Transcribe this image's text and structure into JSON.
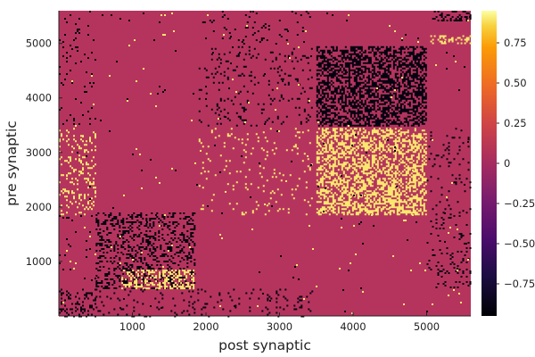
{
  "chart_data": {
    "type": "heatmap",
    "title": "",
    "xlabel": "post synaptic",
    "ylabel": "pre synaptic",
    "xlim": [
      0,
      5600
    ],
    "ylim": [
      0,
      5600
    ],
    "x_ticks": [
      1000,
      2000,
      3000,
      4000,
      5000
    ],
    "y_ticks": [
      1000,
      2000,
      3000,
      4000,
      5000
    ],
    "x_tick_labels": [
      "1000",
      "2000",
      "3000",
      "4000",
      "5000"
    ],
    "y_tick_labels": [
      "1000",
      "2000",
      "3000",
      "4000",
      "5000"
    ],
    "colorbar": {
      "colormap": "inferno",
      "range": [
        -0.95,
        0.95
      ],
      "ticks": [
        -0.75,
        -0.5,
        -0.25,
        0,
        0.25,
        0.5,
        0.75
      ],
      "tick_labels": [
        "−0.75",
        "−0.50",
        "−0.25",
        "0",
        "0.25",
        "0.50",
        "0.75"
      ]
    },
    "background_value": 0,
    "blocks": [
      {
        "x": [
          3500,
          5000
        ],
        "y": [
          3500,
          4950
        ],
        "value": -0.9,
        "density": 0.55
      },
      {
        "x": [
          3500,
          5000
        ],
        "y": [
          1850,
          3450
        ],
        "value": 0.9,
        "density": 0.5
      },
      {
        "x": [
          500,
          1850
        ],
        "y": [
          500,
          1900
        ],
        "value": -0.9,
        "density": 0.28
      },
      {
        "x": [
          850,
          1850
        ],
        "y": [
          500,
          850
        ],
        "value": 0.9,
        "density": 0.42
      },
      {
        "x": [
          1900,
          3450
        ],
        "y": [
          3500,
          4950
        ],
        "value": -0.9,
        "density": 0.08
      },
      {
        "x": [
          1900,
          3450
        ],
        "y": [
          1850,
          3450
        ],
        "value": 0.9,
        "density": 0.05
      },
      {
        "x": [
          0,
          500
        ],
        "y": [
          1850,
          3450
        ],
        "value": 0.9,
        "density": 0.15
      },
      {
        "x": [
          0,
          500
        ],
        "y": [
          0,
          500
        ],
        "value": -0.9,
        "density": 0.22
      },
      {
        "x": [
          500,
          3450
        ],
        "y": [
          0,
          500
        ],
        "value": -0.9,
        "density": 0.08
      },
      {
        "x": [
          0,
          500
        ],
        "y": [
          500,
          1850
        ],
        "value": -0.9,
        "density": 0.03
      },
      {
        "x": [
          0,
          500
        ],
        "y": [
          3500,
          5600
        ],
        "value": -0.9,
        "density": 0.05
      },
      {
        "x": [
          1900,
          3450
        ],
        "y": [
          5000,
          5600
        ],
        "value": -0.9,
        "density": 0.04
      },
      {
        "x": [
          5000,
          5600
        ],
        "y": [
          1850,
          3450
        ],
        "value": -0.9,
        "density": 0.06
      },
      {
        "x": [
          5000,
          5600
        ],
        "y": [
          500,
          1850
        ],
        "value": -0.9,
        "density": 0.1
      },
      {
        "x": [
          5050,
          5600
        ],
        "y": [
          5400,
          5600
        ],
        "value": -0.9,
        "density": 0.35
      },
      {
        "x": [
          5050,
          5600
        ],
        "y": [
          5000,
          5150
        ],
        "value": 0.9,
        "density": 0.35
      },
      {
        "x": [
          0,
          5600
        ],
        "y": [
          0,
          5600
        ],
        "value": -0.9,
        "density": 0.004
      },
      {
        "x": [
          0,
          5600
        ],
        "y": [
          0,
          5600
        ],
        "value": 0.9,
        "density": 0.003
      }
    ]
  }
}
